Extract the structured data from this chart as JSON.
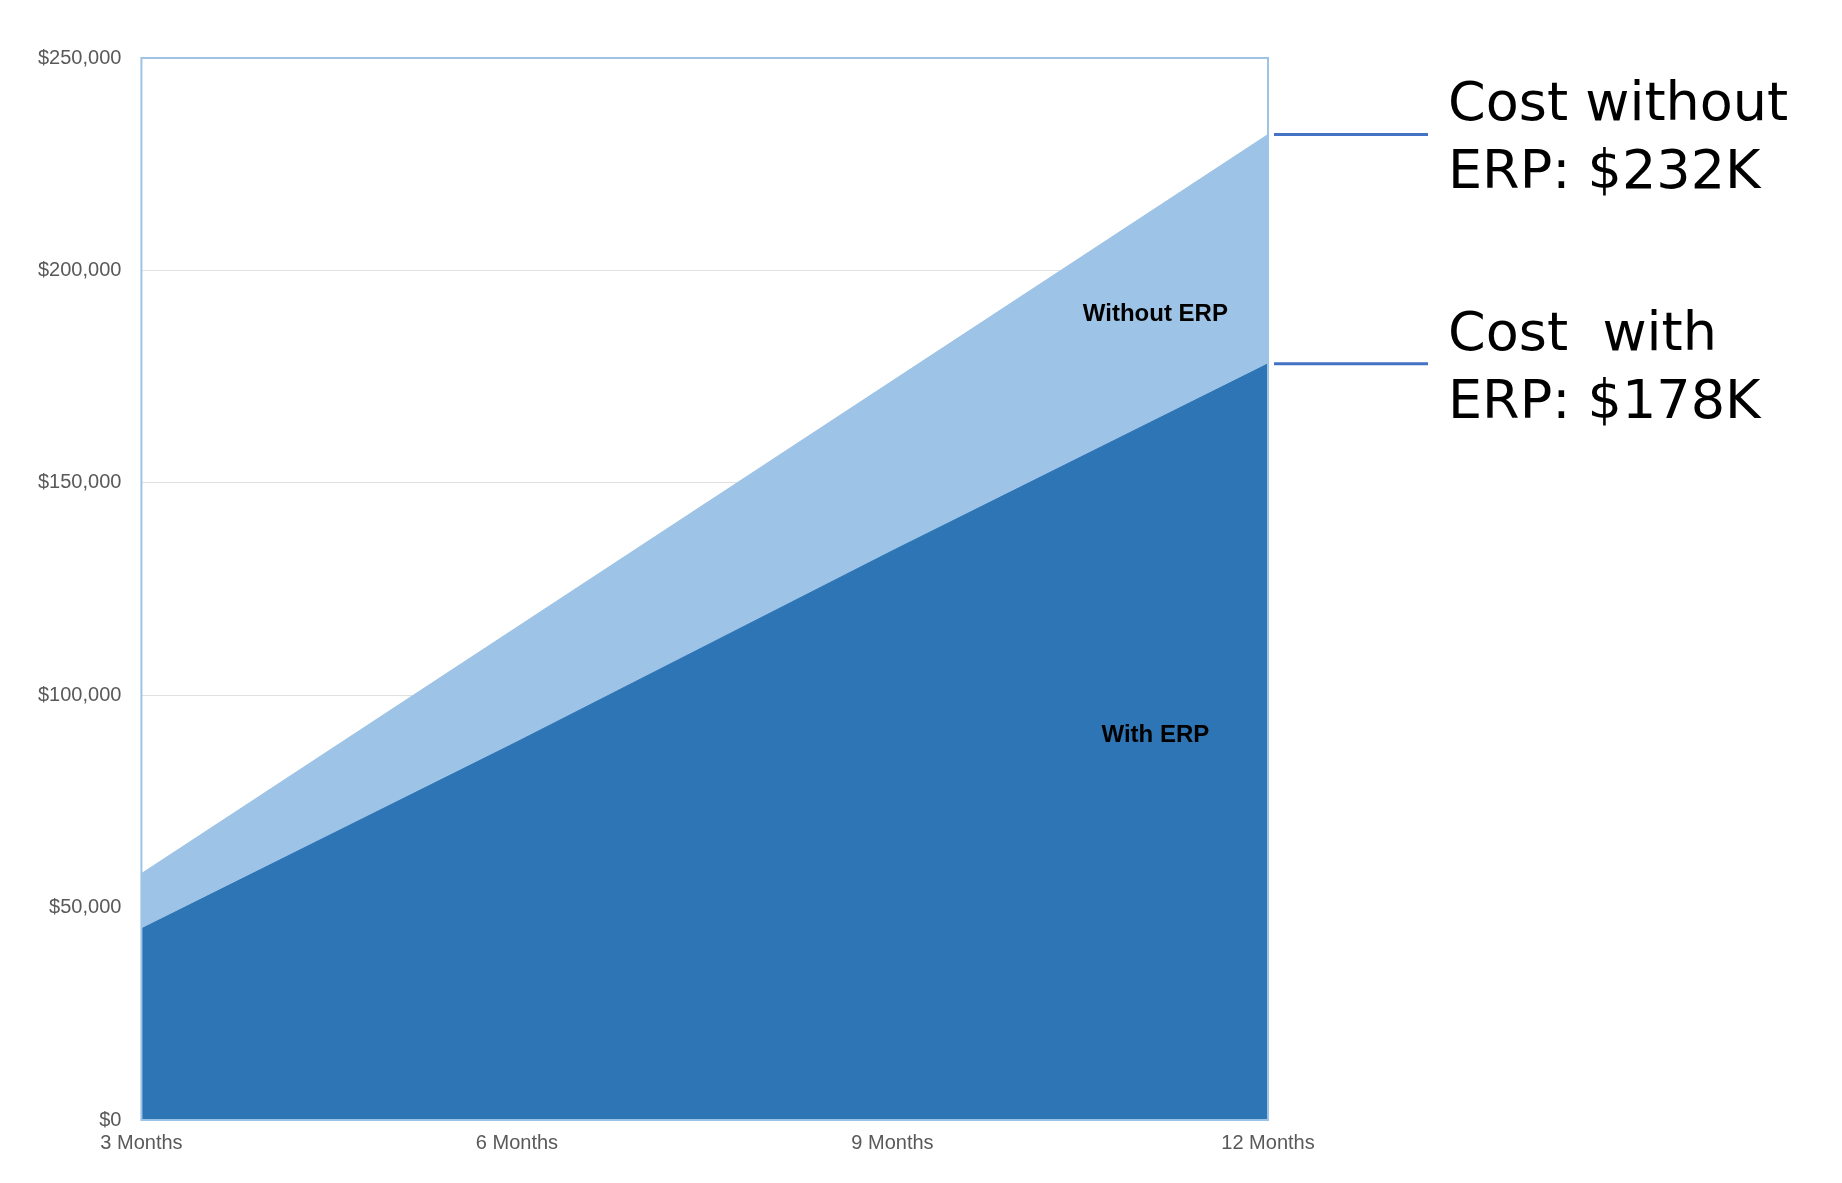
{
  "chart_data": {
    "type": "area",
    "categories": [
      "3 Months",
      "6 Months",
      "9 Months",
      "12 Months"
    ],
    "series": [
      {
        "name": "Without ERP",
        "color": "#9dc3e6",
        "values": [
          58000,
          116000,
          174000,
          232000
        ]
      },
      {
        "name": "With ERP",
        "color": "#2e75b6",
        "values": [
          45000,
          89000,
          134000,
          178000
        ]
      }
    ],
    "ylim": [
      0,
      250000
    ],
    "yticks": [
      {
        "value": 0,
        "label": "$0"
      },
      {
        "value": 50000,
        "label": "$50,000"
      },
      {
        "value": 100000,
        "label": "$100,000"
      },
      {
        "value": 150000,
        "label": "$150,000"
      },
      {
        "value": 200000,
        "label": "$200,000"
      },
      {
        "value": 250000,
        "label": "$250,000"
      }
    ],
    "grid": "y",
    "legend": false,
    "annotations": [
      {
        "text": "Cost without ERP: $232K",
        "x": "12 Months",
        "y": 232000
      },
      {
        "text": "Cost  with ERP: $178K",
        "x": "12 Months",
        "y": 178000
      }
    ]
  }
}
